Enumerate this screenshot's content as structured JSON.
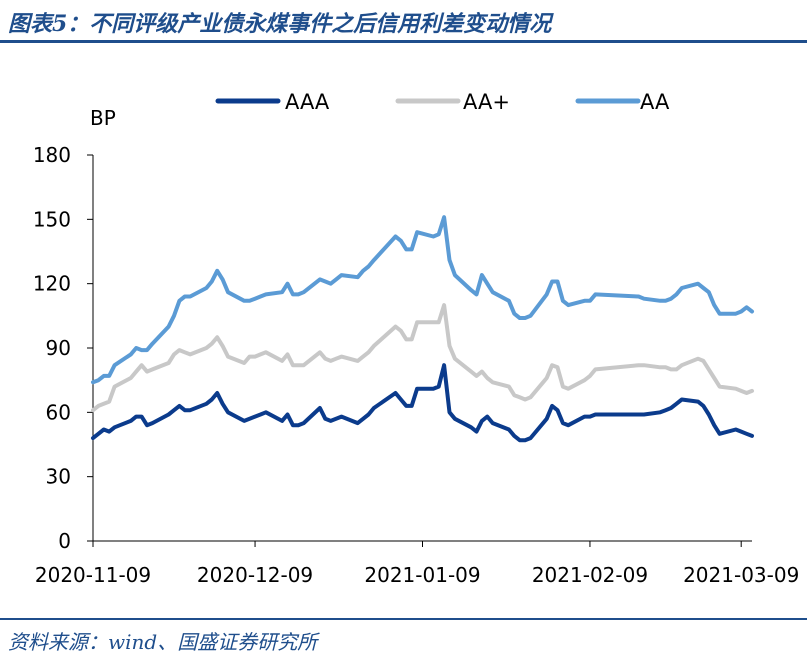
{
  "figure": {
    "title": "图表5：不同评级产业债永煤事件之后信用利差变动情况",
    "source": "资料来源：wind、国盛证券研究所"
  },
  "chart_data": {
    "type": "line",
    "title": "",
    "xlabel": "",
    "ylabel": "BP",
    "ylim": [
      0,
      180
    ],
    "yticks": [
      0,
      30,
      60,
      90,
      120,
      150,
      180
    ],
    "xlim": [
      "2020-11-09",
      "2021-03-11"
    ],
    "xticks": [
      "2020-11-09",
      "2020-12-09",
      "2021-01-09",
      "2021-02-09",
      "2021-03-09"
    ],
    "grid": false,
    "legend_position": "top",
    "colors": {
      "AAA": "#0b3b8c",
      "AA+": "#c8c8c8",
      "AA": "#5b9bd5"
    },
    "x": [
      "2020-11-09",
      "2020-11-10",
      "2020-11-11",
      "2020-11-12",
      "2020-11-13",
      "2020-11-16",
      "2020-11-17",
      "2020-11-18",
      "2020-11-19",
      "2020-11-20",
      "2020-11-23",
      "2020-11-24",
      "2020-11-25",
      "2020-11-26",
      "2020-11-27",
      "2020-11-30",
      "2020-12-01",
      "2020-12-02",
      "2020-12-03",
      "2020-12-04",
      "2020-12-07",
      "2020-12-08",
      "2020-12-09",
      "2020-12-10",
      "2020-12-11",
      "2020-12-14",
      "2020-12-15",
      "2020-12-16",
      "2020-12-17",
      "2020-12-18",
      "2020-12-21",
      "2020-12-22",
      "2020-12-23",
      "2020-12-24",
      "2020-12-25",
      "2020-12-28",
      "2020-12-29",
      "2020-12-30",
      "2020-12-31",
      "2021-01-04",
      "2021-01-05",
      "2021-01-06",
      "2021-01-07",
      "2021-01-08",
      "2021-01-11",
      "2021-01-12",
      "2021-01-13",
      "2021-01-14",
      "2021-01-15",
      "2021-01-18",
      "2021-01-19",
      "2021-01-20",
      "2021-01-21",
      "2021-01-22",
      "2021-01-25",
      "2021-01-26",
      "2021-01-27",
      "2021-01-28",
      "2021-01-29",
      "2021-02-01",
      "2021-02-02",
      "2021-02-03",
      "2021-02-04",
      "2021-02-05",
      "2021-02-08",
      "2021-02-09",
      "2021-02-10",
      "2021-02-18",
      "2021-02-19",
      "2021-02-22",
      "2021-02-23",
      "2021-02-24",
      "2021-02-25",
      "2021-02-26",
      "2021-03-01",
      "2021-03-02",
      "2021-03-03",
      "2021-03-04",
      "2021-03-05",
      "2021-03-08",
      "2021-03-09",
      "2021-03-10",
      "2021-03-11"
    ],
    "series": [
      {
        "name": "AAA",
        "values": [
          48,
          50,
          52,
          51,
          53,
          56,
          58,
          58,
          54,
          55,
          59,
          61,
          63,
          61,
          61,
          64,
          66,
          69,
          64,
          60,
          56,
          57,
          58,
          59,
          60,
          56,
          59,
          54,
          54,
          55,
          62,
          57,
          56,
          57,
          58,
          55,
          57,
          59,
          62,
          69,
          66,
          63,
          63,
          71,
          71,
          72,
          82,
          60,
          57,
          53,
          51,
          56,
          58,
          55,
          52,
          49,
          47,
          47,
          48,
          57,
          63,
          61,
          55,
          54,
          58,
          58,
          59,
          59,
          59,
          60,
          61,
          62,
          64,
          66,
          65,
          63,
          59,
          54,
          50,
          52,
          51,
          50,
          49
        ]
      },
      {
        "name": "AA+",
        "values": [
          61,
          63,
          64,
          65,
          72,
          76,
          79,
          82,
          79,
          80,
          83,
          87,
          89,
          88,
          87,
          90,
          92,
          95,
          91,
          86,
          83,
          86,
          86,
          87,
          88,
          84,
          87,
          82,
          82,
          82,
          88,
          85,
          84,
          85,
          86,
          84,
          86,
          88,
          91,
          100,
          98,
          94,
          94,
          102,
          102,
          102,
          110,
          91,
          85,
          79,
          77,
          79,
          76,
          74,
          72,
          68,
          67,
          66,
          67,
          76,
          82,
          81,
          72,
          71,
          75,
          77,
          80,
          82,
          82,
          81,
          81,
          80,
          80,
          82,
          85,
          84,
          80,
          76,
          72,
          71,
          70,
          69,
          70
        ]
      },
      {
        "name": "AA",
        "values": [
          74,
          75,
          77,
          77,
          82,
          87,
          90,
          89,
          89,
          92,
          100,
          105,
          112,
          114,
          114,
          118,
          121,
          126,
          122,
          116,
          112,
          112,
          113,
          114,
          115,
          116,
          120,
          115,
          115,
          116,
          122,
          121,
          120,
          122,
          124,
          123,
          126,
          128,
          131,
          142,
          140,
          136,
          136,
          144,
          142,
          143,
          151,
          131,
          124,
          117,
          115,
          124,
          120,
          116,
          112,
          106,
          104,
          104,
          105,
          115,
          121,
          121,
          112,
          110,
          112,
          112,
          115,
          114,
          113,
          112,
          112,
          113,
          115,
          118,
          120,
          118,
          116,
          110,
          106,
          106,
          107,
          109,
          107
        ]
      }
    ]
  }
}
